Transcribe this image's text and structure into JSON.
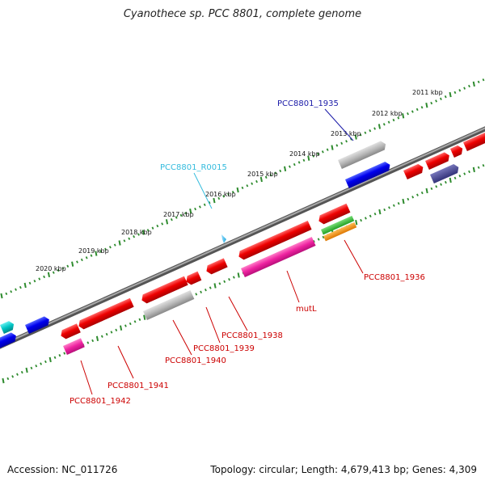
{
  "title": "Cyanothece sp. PCC 8801, complete genome",
  "footer": {
    "accession": "Accession: NC_011726",
    "summary": "Topology: circular; Length: 4,679,413 bp; Genes: 4,309"
  },
  "colors": {
    "backbone": "#7a7a7a",
    "tick": "#2e8b2e",
    "label_red": "#cc0000",
    "label_blue": "#1a1aa8",
    "label_cyan": "#33bbdd"
  },
  "tick_labels": [
    "2011 kbp",
    "2012 kbp",
    "2013 kbp",
    "2014 kbp",
    "2015 kbp",
    "2016 kbp",
    "2017 kbp",
    "2018 kbp",
    "2019 kbp",
    "2020 kbp"
  ],
  "gene_labels": {
    "pcc8801_1935": "PCC8801_1935",
    "pcc8801_r0015": "PCC8801_R0015",
    "pcc8801_1936": "PCC8801_1936",
    "mutl": "mutL",
    "pcc8801_1938": "PCC8801_1938",
    "pcc8801_1939": "PCC8801_1939",
    "pcc8801_1940": "PCC8801_1940",
    "pcc8801_1941": "PCC8801_1941",
    "pcc8801_1942": "PCC8801_1942"
  }
}
